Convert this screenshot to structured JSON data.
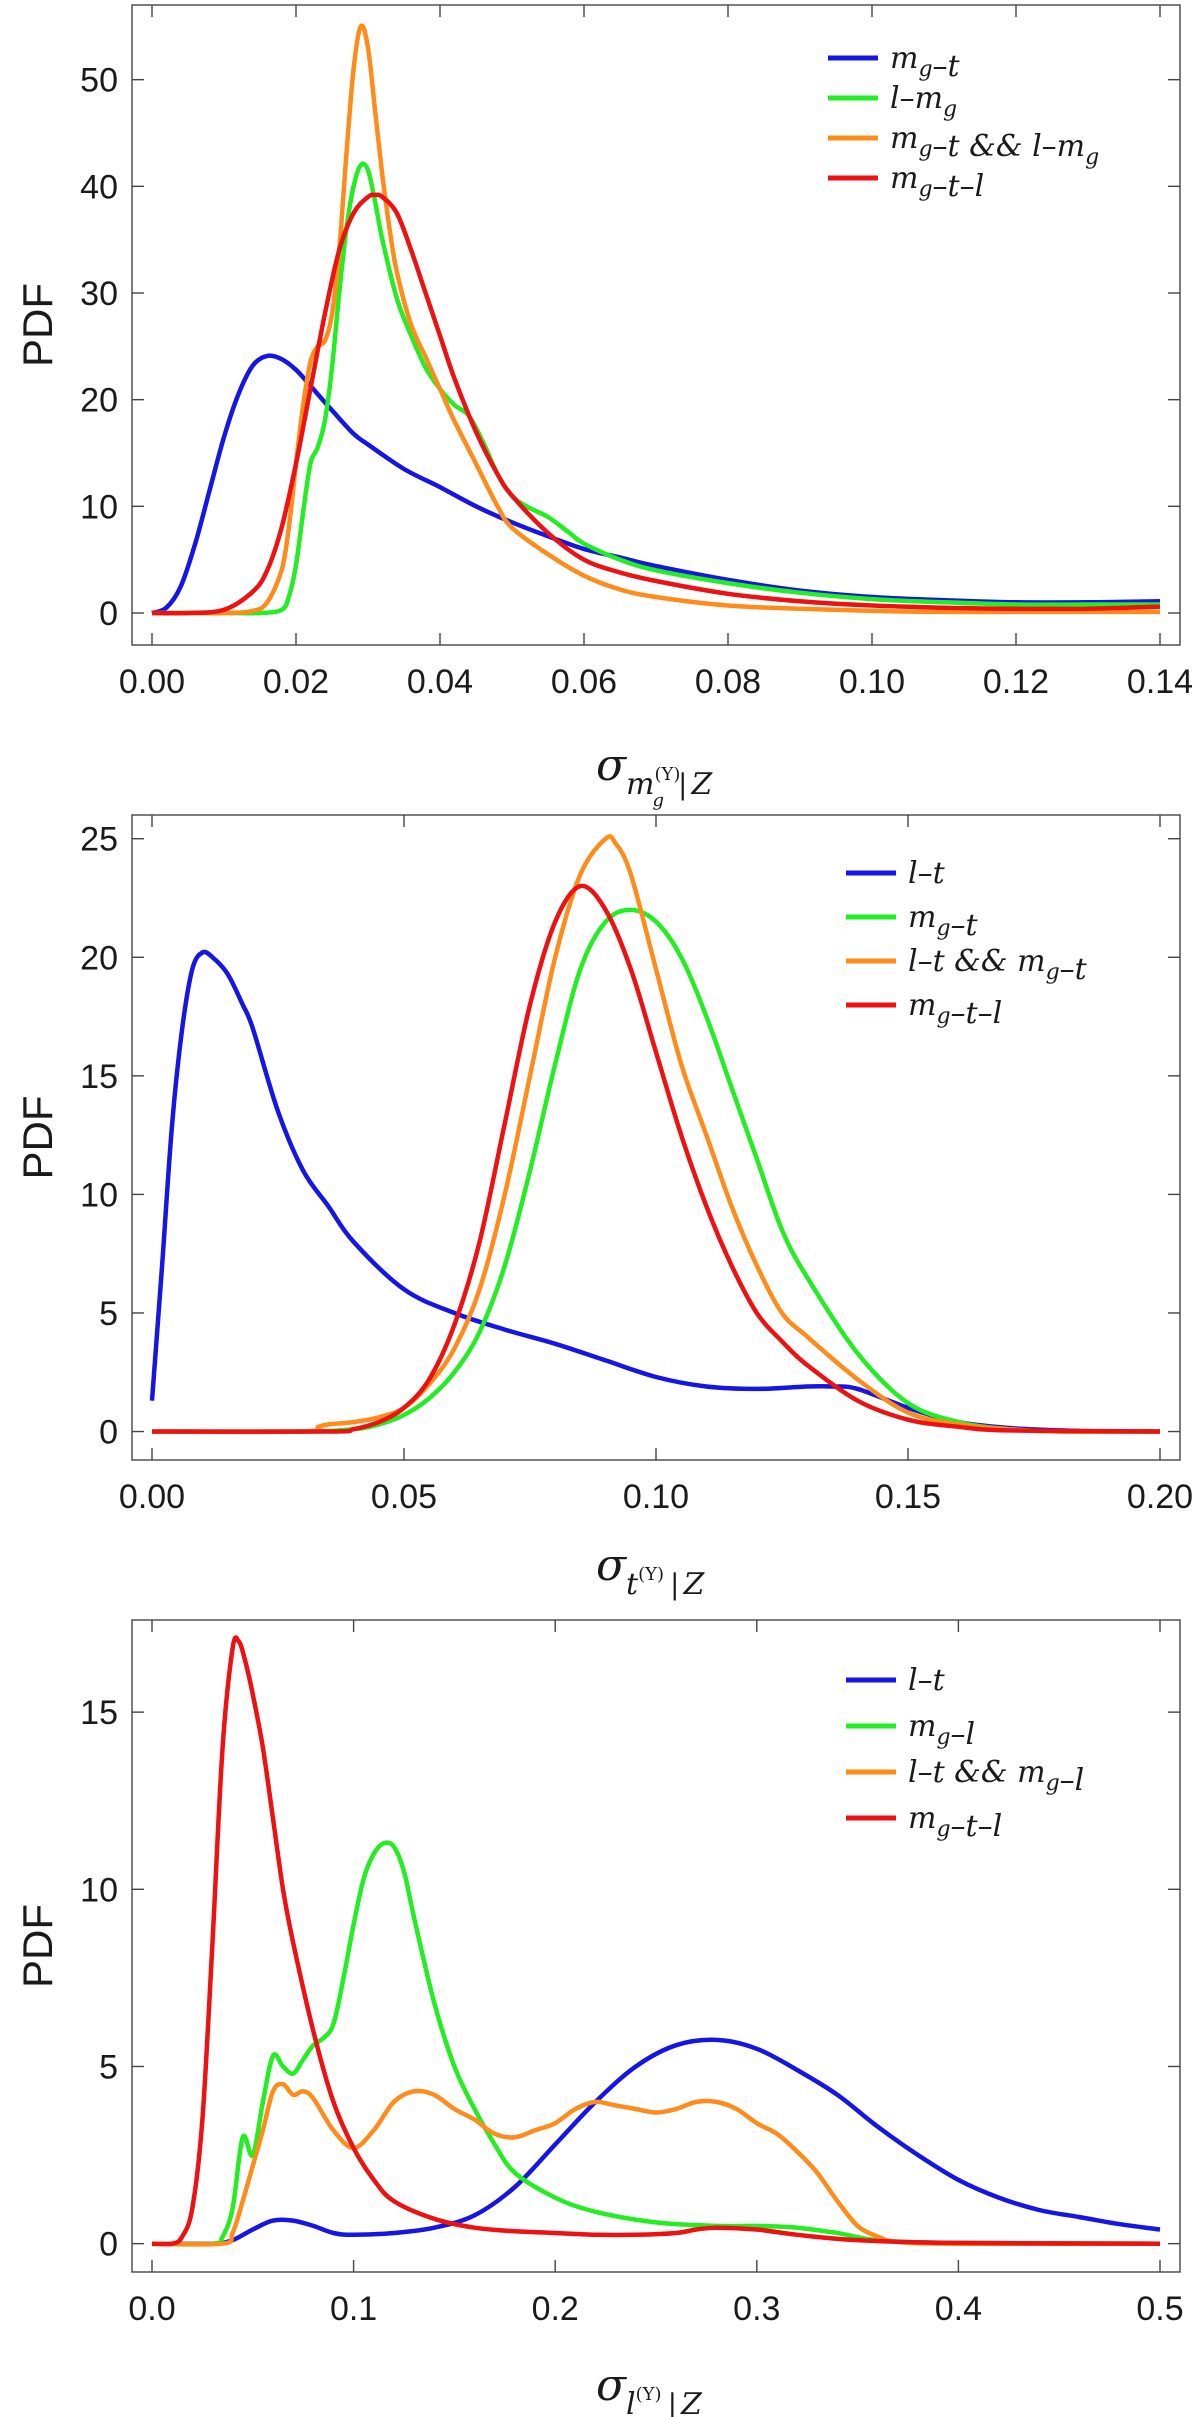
{
  "chart_data": [
    {
      "type": "line",
      "ylabel": "PDF",
      "xlabel_symbol": "σ",
      "xlabel_sub": "m",
      "xlabel_subsub": "g",
      "xlabel_sup": "(Y)",
      "xlabel_tail": "Z",
      "xlim": [
        0,
        0.14
      ],
      "ylim": [
        -3,
        57
      ],
      "xticks": [
        0,
        0.02,
        0.04,
        0.06,
        0.08,
        0.1,
        0.12,
        0.14
      ],
      "xtick_labels": [
        "0.00",
        "0.02",
        "0.04",
        "0.06",
        "0.08",
        "0.10",
        "0.12",
        "0.14"
      ],
      "yticks": [
        0,
        10,
        20,
        30,
        40,
        50
      ],
      "ytick_labels": [
        "0",
        "10",
        "20",
        "30",
        "40",
        "50"
      ],
      "legend_position": "top-right",
      "series": [
        {
          "name": "m_g–t",
          "color": "#1515e6",
          "x": [
            0,
            0.002,
            0.004,
            0.006,
            0.008,
            0.01,
            0.012,
            0.014,
            0.016,
            0.018,
            0.02,
            0.022,
            0.025,
            0.028,
            0.03,
            0.035,
            0.04,
            0.045,
            0.05,
            0.055,
            0.06,
            0.065,
            0.07,
            0.08,
            0.09,
            0.1,
            0.11,
            0.12,
            0.13,
            0.14
          ],
          "y": [
            0,
            0.5,
            2.5,
            6.5,
            11.5,
            16.5,
            20.5,
            23.2,
            24.1,
            23.8,
            22.8,
            21.3,
            19.0,
            16.8,
            15.8,
            13.5,
            11.8,
            10.0,
            8.5,
            7.2,
            6.0,
            5.2,
            4.4,
            3.1,
            2.1,
            1.5,
            1.2,
            1.0,
            1.0,
            1.1
          ]
        },
        {
          "name": "l–m_g",
          "color": "#22ee22",
          "x": [
            0,
            0.01,
            0.015,
            0.018,
            0.019,
            0.02,
            0.021,
            0.022,
            0.023,
            0.024,
            0.025,
            0.026,
            0.027,
            0.028,
            0.029,
            0.03,
            0.031,
            0.032,
            0.034,
            0.036,
            0.038,
            0.04,
            0.042,
            0.044,
            0.046,
            0.048,
            0.05,
            0.052,
            0.055,
            0.058,
            0.06,
            0.065,
            0.07,
            0.08,
            0.09,
            0.1,
            0.11,
            0.12,
            0.13,
            0.14
          ],
          "y": [
            0,
            0,
            0,
            0.3,
            1.5,
            4.5,
            9.5,
            14.0,
            15.5,
            18.0,
            23.0,
            30.0,
            36.0,
            40.0,
            42.0,
            41.5,
            38.5,
            35.0,
            29.5,
            26.0,
            23.0,
            21.0,
            19.5,
            18.5,
            16.0,
            13.0,
            11.0,
            10.0,
            9.0,
            7.5,
            6.5,
            5.0,
            4.0,
            2.8,
            1.9,
            1.3,
            1.0,
            0.8,
            0.8,
            0.8
          ]
        },
        {
          "name": "m_g–t && l–m_g",
          "color": "#ff8c1a",
          "x": [
            0,
            0.01,
            0.014,
            0.016,
            0.018,
            0.019,
            0.02,
            0.021,
            0.022,
            0.023,
            0.024,
            0.025,
            0.026,
            0.027,
            0.028,
            0.029,
            0.03,
            0.031,
            0.032,
            0.033,
            0.034,
            0.036,
            0.038,
            0.04,
            0.042,
            0.045,
            0.048,
            0.05,
            0.055,
            0.06,
            0.065,
            0.07,
            0.08,
            0.09,
            0.1,
            0.11,
            0.12,
            0.13,
            0.14
          ],
          "y": [
            0,
            0,
            0.2,
            1.0,
            4.0,
            8.0,
            14.0,
            19.5,
            23.5,
            25.0,
            25.5,
            28.0,
            34.0,
            43.0,
            51.0,
            55.0,
            53.0,
            47.0,
            41.0,
            36.0,
            32.0,
            27.0,
            24.0,
            21.0,
            18.0,
            14.0,
            10.0,
            8.0,
            5.5,
            3.5,
            2.2,
            1.5,
            0.7,
            0.4,
            0.2,
            0.1,
            0.1,
            0.1,
            0.1
          ]
        },
        {
          "name": "m_g–t–l",
          "color": "#ee1111",
          "x": [
            0,
            0.005,
            0.01,
            0.014,
            0.016,
            0.018,
            0.02,
            0.022,
            0.024,
            0.026,
            0.028,
            0.03,
            0.031,
            0.032,
            0.034,
            0.036,
            0.038,
            0.04,
            0.042,
            0.045,
            0.048,
            0.05,
            0.055,
            0.06,
            0.065,
            0.07,
            0.08,
            0.09,
            0.1,
            0.11,
            0.12,
            0.13,
            0.14
          ],
          "y": [
            0,
            0,
            0.3,
            2.0,
            4.0,
            8.0,
            14.0,
            21.0,
            28.0,
            34.0,
            37.5,
            39.0,
            39.2,
            39.0,
            37.5,
            34.0,
            30.0,
            26.0,
            22.0,
            17.0,
            13.0,
            11.0,
            7.5,
            5.0,
            3.8,
            3.0,
            1.8,
            1.1,
            0.7,
            0.5,
            0.4,
            0.4,
            0.6
          ]
        }
      ]
    },
    {
      "type": "line",
      "ylabel": "PDF",
      "xlabel_symbol": "σ",
      "xlabel_sub": "t",
      "xlabel_subsub": "",
      "xlabel_sup": "(Y)",
      "xlabel_tail": "Z",
      "xlim": [
        0,
        0.2
      ],
      "ylim": [
        -1.2,
        26
      ],
      "xticks": [
        0,
        0.05,
        0.1,
        0.15,
        0.2
      ],
      "xtick_labels": [
        "0.00",
        "0.05",
        "0.10",
        "0.15",
        "0.20"
      ],
      "yticks": [
        0,
        5,
        10,
        15,
        20,
        25
      ],
      "ytick_labels": [
        "0",
        "5",
        "10",
        "15",
        "20",
        "25"
      ],
      "legend_position": "top-right",
      "series": [
        {
          "name": "l–t",
          "color": "#1515e6",
          "x": [
            0,
            0.002,
            0.004,
            0.006,
            0.008,
            0.01,
            0.012,
            0.015,
            0.018,
            0.02,
            0.025,
            0.03,
            0.035,
            0.04,
            0.05,
            0.06,
            0.07,
            0.08,
            0.09,
            0.1,
            0.11,
            0.12,
            0.13,
            0.135,
            0.14,
            0.15,
            0.16,
            0.17,
            0.18,
            0.19,
            0.2
          ],
          "y": [
            1.3,
            7.0,
            13.0,
            17.0,
            19.5,
            20.2,
            20.0,
            19.3,
            18.0,
            17.0,
            13.5,
            11.0,
            9.5,
            8.0,
            6.0,
            5.0,
            4.3,
            3.7,
            3.0,
            2.3,
            1.9,
            1.8,
            1.9,
            1.9,
            1.8,
            1.0,
            0.4,
            0.15,
            0.05,
            0,
            0
          ]
        },
        {
          "name": "m_g–t",
          "color": "#22ee22",
          "x": [
            0,
            0.03,
            0.04,
            0.045,
            0.05,
            0.055,
            0.06,
            0.065,
            0.07,
            0.075,
            0.08,
            0.085,
            0.09,
            0.095,
            0.1,
            0.105,
            0.11,
            0.115,
            0.12,
            0.125,
            0.13,
            0.14,
            0.15,
            0.16,
            0.17,
            0.18,
            0.2
          ],
          "y": [
            0,
            0,
            0.1,
            0.3,
            0.7,
            1.4,
            2.5,
            4.2,
            7.0,
            11.0,
            15.5,
            19.5,
            21.5,
            22.0,
            21.5,
            20.0,
            17.5,
            14.5,
            11.5,
            8.5,
            6.5,
            3.3,
            1.2,
            0.4,
            0.1,
            0,
            0
          ]
        },
        {
          "name": "l–t && m_g–t",
          "color": "#ff8c1a",
          "x": [
            0,
            0.03,
            0.033,
            0.035,
            0.04,
            0.045,
            0.05,
            0.055,
            0.06,
            0.065,
            0.07,
            0.075,
            0.08,
            0.085,
            0.09,
            0.092,
            0.095,
            0.1,
            0.105,
            0.11,
            0.115,
            0.12,
            0.125,
            0.13,
            0.14,
            0.15,
            0.16,
            0.17,
            0.18,
            0.2
          ],
          "y": [
            0,
            0,
            0.2,
            0.3,
            0.4,
            0.6,
            1.0,
            2.0,
            3.5,
            6.0,
            10.0,
            15.0,
            20.0,
            23.5,
            25.0,
            24.8,
            23.5,
            19.5,
            15.5,
            12.5,
            9.5,
            7.0,
            5.0,
            4.0,
            2.2,
            0.8,
            0.3,
            0.1,
            0,
            0
          ]
        },
        {
          "name": "m_g–t–l",
          "color": "#ee1111",
          "x": [
            0,
            0.035,
            0.04,
            0.045,
            0.05,
            0.055,
            0.06,
            0.065,
            0.07,
            0.075,
            0.08,
            0.085,
            0.09,
            0.095,
            0.1,
            0.105,
            0.11,
            0.115,
            0.12,
            0.125,
            0.13,
            0.14,
            0.15,
            0.16,
            0.17,
            0.2
          ],
          "y": [
            0,
            0,
            0.1,
            0.4,
            1.0,
            2.2,
            4.5,
            8.0,
            13.0,
            18.0,
            21.5,
            23.0,
            22.0,
            19.5,
            16.0,
            12.5,
            9.5,
            7.0,
            5.0,
            3.8,
            2.8,
            1.3,
            0.5,
            0.2,
            0.05,
            0
          ]
        }
      ]
    },
    {
      "type": "line",
      "ylabel": "PDF",
      "xlabel_symbol": "σ",
      "xlabel_sub": "l",
      "xlabel_subsub": "",
      "xlabel_sup": "(Y)",
      "xlabel_tail": "Z",
      "xlim": [
        0,
        0.5
      ],
      "ylim": [
        -0.8,
        17.6
      ],
      "xticks": [
        0,
        0.1,
        0.2,
        0.3,
        0.4,
        0.5
      ],
      "xtick_labels": [
        "0.0",
        "0.1",
        "0.2",
        "0.3",
        "0.4",
        "0.5"
      ],
      "yticks": [
        0,
        5,
        10,
        15
      ],
      "ytick_labels": [
        "0",
        "5",
        "10",
        "15"
      ],
      "legend_position": "top-right",
      "series": [
        {
          "name": "l–t",
          "color": "#1515e6",
          "x": [
            0,
            0.03,
            0.04,
            0.05,
            0.06,
            0.07,
            0.08,
            0.09,
            0.1,
            0.12,
            0.14,
            0.16,
            0.18,
            0.2,
            0.22,
            0.24,
            0.26,
            0.28,
            0.3,
            0.32,
            0.34,
            0.36,
            0.38,
            0.4,
            0.42,
            0.44,
            0.46,
            0.48,
            0.5
          ],
          "y": [
            0,
            0,
            0.1,
            0.4,
            0.65,
            0.65,
            0.5,
            0.3,
            0.25,
            0.3,
            0.45,
            0.8,
            1.6,
            2.8,
            4.0,
            5.0,
            5.6,
            5.75,
            5.5,
            4.9,
            4.2,
            3.3,
            2.5,
            1.8,
            1.3,
            0.95,
            0.75,
            0.55,
            0.4
          ]
        },
        {
          "name": "m_g–l",
          "color": "#22ee22",
          "x": [
            0,
            0.03,
            0.035,
            0.04,
            0.045,
            0.05,
            0.055,
            0.06,
            0.065,
            0.07,
            0.075,
            0.08,
            0.085,
            0.09,
            0.095,
            0.1,
            0.105,
            0.11,
            0.115,
            0.12,
            0.125,
            0.13,
            0.14,
            0.15,
            0.16,
            0.17,
            0.18,
            0.2,
            0.22,
            0.25,
            0.28,
            0.3,
            0.32,
            0.34,
            0.36,
            0.4,
            0.5
          ],
          "y": [
            0,
            0,
            0.2,
            1.0,
            3.0,
            2.5,
            4.0,
            5.3,
            5.0,
            4.8,
            5.2,
            5.6,
            5.8,
            6.2,
            7.5,
            9.0,
            10.3,
            11.0,
            11.3,
            11.2,
            10.5,
            9.2,
            6.8,
            5.0,
            3.8,
            2.8,
            2.0,
            1.3,
            0.9,
            0.6,
            0.5,
            0.5,
            0.45,
            0.3,
            0.1,
            0.02,
            0
          ]
        },
        {
          "name": "l–t && m_g–l",
          "color": "#ff8c1a",
          "x": [
            0,
            0.035,
            0.04,
            0.045,
            0.05,
            0.055,
            0.06,
            0.065,
            0.07,
            0.075,
            0.08,
            0.09,
            0.1,
            0.11,
            0.12,
            0.13,
            0.14,
            0.15,
            0.16,
            0.17,
            0.18,
            0.19,
            0.2,
            0.21,
            0.22,
            0.23,
            0.24,
            0.25,
            0.26,
            0.27,
            0.28,
            0.29,
            0.3,
            0.31,
            0.32,
            0.33,
            0.34,
            0.35,
            0.36,
            0.37,
            0.4,
            0.5
          ],
          "y": [
            0,
            0,
            0.3,
            1.2,
            2.2,
            3.2,
            4.3,
            4.5,
            4.2,
            4.3,
            4.1,
            3.2,
            2.7,
            3.2,
            4.0,
            4.3,
            4.2,
            3.8,
            3.5,
            3.1,
            3.0,
            3.2,
            3.4,
            3.8,
            4.0,
            3.9,
            3.8,
            3.7,
            3.8,
            4.0,
            4.0,
            3.8,
            3.4,
            3.1,
            2.6,
            2.0,
            1.2,
            0.5,
            0.2,
            0.05,
            0,
            0
          ]
        },
        {
          "name": "m_g–t–l",
          "color": "#ee1111",
          "x": [
            0,
            0.01,
            0.015,
            0.02,
            0.025,
            0.03,
            0.035,
            0.04,
            0.043,
            0.046,
            0.05,
            0.055,
            0.06,
            0.065,
            0.07,
            0.08,
            0.09,
            0.1,
            0.11,
            0.12,
            0.14,
            0.16,
            0.18,
            0.2,
            0.22,
            0.24,
            0.26,
            0.27,
            0.28,
            0.3,
            0.32,
            0.35,
            0.4,
            0.5
          ],
          "y": [
            0,
            0,
            0.2,
            1.0,
            3.5,
            8.5,
            14.0,
            16.8,
            17.0,
            16.5,
            15.5,
            14.0,
            12.0,
            10.0,
            8.5,
            6.0,
            4.0,
            2.7,
            1.8,
            1.2,
            0.7,
            0.45,
            0.35,
            0.3,
            0.25,
            0.25,
            0.3,
            0.4,
            0.45,
            0.4,
            0.25,
            0.1,
            0.02,
            0
          ]
        }
      ]
    }
  ]
}
